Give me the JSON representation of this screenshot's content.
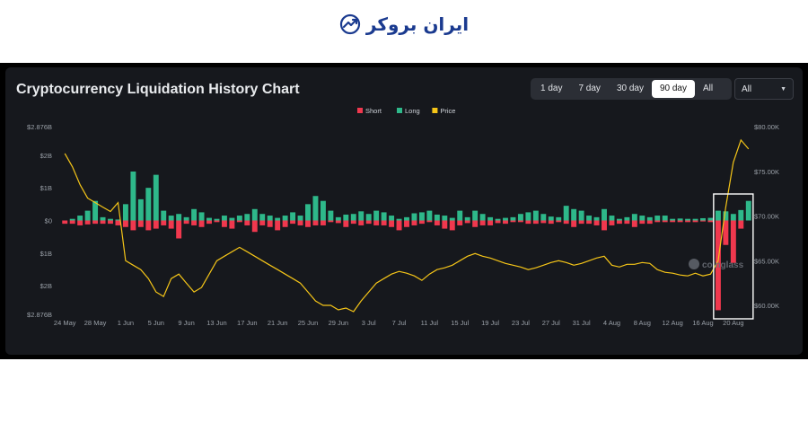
{
  "brand": {
    "name": "ایران بروکر"
  },
  "title": "Cryptocurrency Liquidation History Chart",
  "range_buttons": [
    {
      "label": "1 day",
      "active": false
    },
    {
      "label": "7 day",
      "active": false
    },
    {
      "label": "30 day",
      "active": false
    },
    {
      "label": "90 day",
      "active": true
    },
    {
      "label": "All",
      "active": false
    }
  ],
  "select": {
    "value": "All"
  },
  "watermark": "coinglass",
  "colors": {
    "short": "#f0384e",
    "long": "#2eb88a",
    "price": "#f5c518",
    "highlight": "#ffffff"
  },
  "chart_data": {
    "type": "bar",
    "title": "",
    "legend": [
      "Short",
      "Long",
      "Price"
    ],
    "legend_position": "top-center",
    "y_left_ticks": [
      "$2.876B",
      "$2B",
      "$1B",
      "$0",
      "$1B",
      "$2B",
      "$2.876B"
    ],
    "y_left_range": [
      -2.876,
      2.876
    ],
    "y_left_unit": "billion USD (long positive, short negative)",
    "y_right_ticks": [
      "$80.00K",
      "$75.00K",
      "$70.00K",
      "$65.00K",
      "$60.00K"
    ],
    "y_right_range": [
      59000,
      80000
    ],
    "x_tick_labels": [
      "24 May",
      "28 May",
      "1 Jun",
      "5 Jun",
      "9 Jun",
      "13 Jun",
      "17 Jun",
      "21 Jun",
      "25 Jun",
      "29 Jun",
      "3 Jul",
      "7 Jul",
      "11 Jul",
      "15 Jul",
      "19 Jul",
      "23 Jul",
      "27 Jul",
      "31 Jul",
      "4 Aug",
      "8 Aug",
      "12 Aug",
      "16 Aug",
      "20 Aug"
    ],
    "days": 91,
    "first_day": "24 May",
    "long": [
      0,
      0.05,
      0.15,
      0.3,
      0.6,
      0.1,
      0.05,
      0.03,
      0.5,
      1.5,
      0.65,
      1.0,
      1.4,
      0.3,
      0.15,
      0.2,
      0.1,
      0.35,
      0.25,
      0.08,
      0.05,
      0.15,
      0.08,
      0.15,
      0.2,
      0.35,
      0.2,
      0.15,
      0.08,
      0.15,
      0.25,
      0.15,
      0.5,
      0.75,
      0.6,
      0.3,
      0.1,
      0.18,
      0.2,
      0.28,
      0.2,
      0.3,
      0.25,
      0.15,
      0.05,
      0.1,
      0.22,
      0.25,
      0.3,
      0.18,
      0.15,
      0.08,
      0.3,
      0.1,
      0.3,
      0.2,
      0.1,
      0.05,
      0.08,
      0.1,
      0.2,
      0.25,
      0.3,
      0.2,
      0.12,
      0.1,
      0.45,
      0.35,
      0.3,
      0.15,
      0.1,
      0.35,
      0.15,
      0.05,
      0.1,
      0.2,
      0.15,
      0.1,
      0.15,
      0.15,
      0.05,
      0.06,
      0.05,
      0.05,
      0.07,
      0.08,
      0.3,
      0.28,
      0.2,
      0.32,
      0.6
    ],
    "short": [
      0.1,
      0.1,
      0.15,
      0.12,
      0.1,
      0.1,
      0.1,
      0.15,
      0.2,
      0.3,
      0.2,
      0.3,
      0.25,
      0.15,
      0.25,
      0.55,
      0.1,
      0.15,
      0.2,
      0.1,
      0.05,
      0.2,
      0.25,
      0.05,
      0.15,
      0.35,
      0.15,
      0.2,
      0.3,
      0.2,
      0.1,
      0.15,
      0.2,
      0.15,
      0.15,
      0.05,
      0.08,
      0.2,
      0.1,
      0.15,
      0.1,
      0.15,
      0.15,
      0.2,
      0.3,
      0.2,
      0.15,
      0.1,
      0.05,
      0.15,
      0.25,
      0.3,
      0.15,
      0.08,
      0.2,
      0.15,
      0.15,
      0.08,
      0.1,
      0.05,
      0.05,
      0.1,
      0.1,
      0.08,
      0.1,
      0.05,
      0.1,
      0.2,
      0.1,
      0.1,
      0.15,
      0.3,
      0.15,
      0.1,
      0.1,
      0.2,
      0.1,
      0.1,
      0.05,
      0.05,
      0.05,
      0.05,
      0.05,
      0.05,
      0.03,
      0.05,
      2.75,
      0.75,
      1.3,
      0.25,
      0
    ],
    "price": [
      77000,
      75500,
      73500,
      72000,
      71500,
      71000,
      70500,
      71500,
      65000,
      64500,
      64000,
      63000,
      61500,
      61000,
      63000,
      63500,
      62500,
      61500,
      62000,
      63500,
      65000,
      65500,
      66000,
      66500,
      66000,
      65500,
      65000,
      64500,
      64000,
      63500,
      63000,
      62500,
      61500,
      60500,
      60000,
      60000,
      59500,
      59700,
      59300,
      60500,
      61500,
      62500,
      63000,
      63500,
      63800,
      63600,
      63300,
      62800,
      63500,
      64000,
      64200,
      64500,
      65000,
      65500,
      65800,
      65500,
      65300,
      65000,
      64700,
      64500,
      64300,
      64000,
      64200,
      64500,
      64800,
      65000,
      64800,
      64500,
      64700,
      65000,
      65300,
      65500,
      64500,
      64300,
      64600,
      64600,
      64800,
      64700,
      64000,
      63700,
      63600,
      63400,
      63300,
      63600,
      63300,
      63500,
      65000,
      71000,
      76000,
      78500,
      77500
    ]
  }
}
